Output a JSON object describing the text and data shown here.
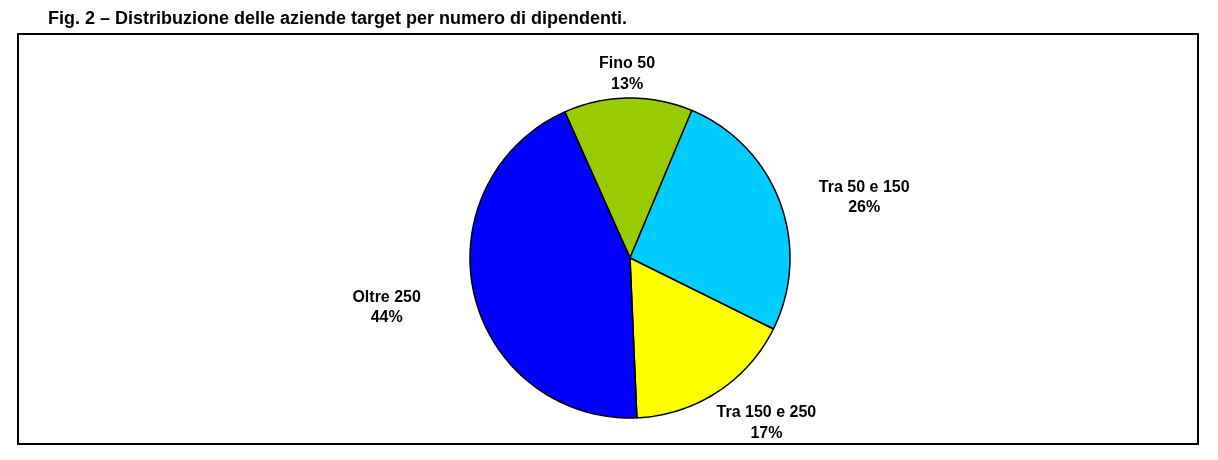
{
  "chart_data": {
    "type": "pie",
    "title": "Fig. 2 – Distribuzione delle aziende target per numero di dipendenti.",
    "categories": [
      "Fino 50",
      "Tra 50 e 150",
      "Tra 150 e 250",
      "Oltre 250"
    ],
    "values": [
      13,
      26,
      17,
      44
    ],
    "value_labels": [
      "13%",
      "26%",
      "17%",
      "44%"
    ],
    "colors": [
      "#99cc00",
      "#00ccff",
      "#ffff00",
      "#0000ff"
    ]
  }
}
